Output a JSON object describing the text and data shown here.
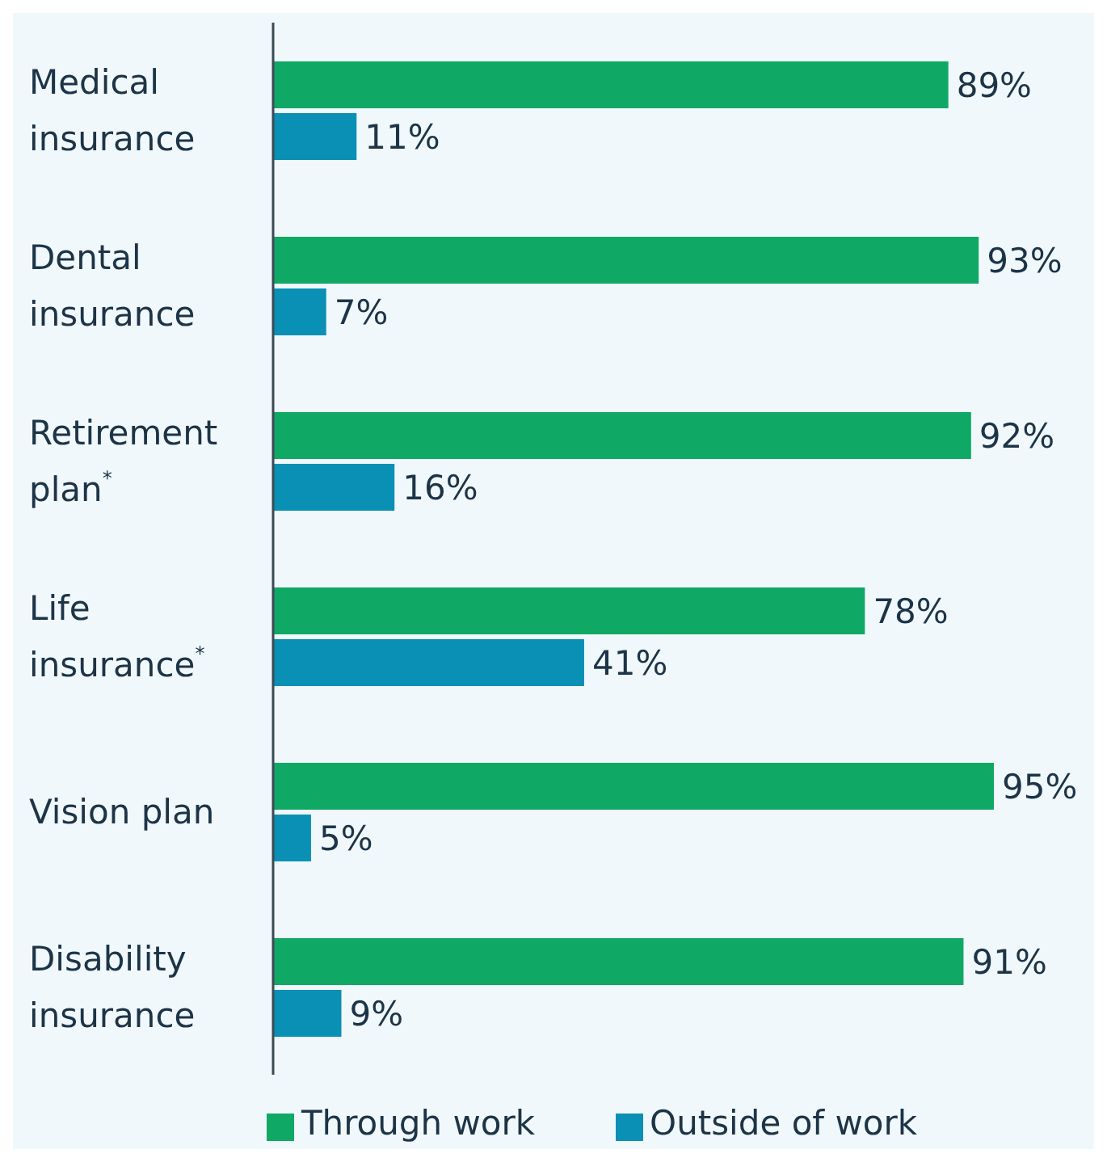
{
  "chart_data": {
    "type": "bar",
    "orientation": "horizontal",
    "categories": [
      "Medical insurance",
      "Dental insurance",
      "Retirement plan$^{*}$",
      "Life insurance$^{*}$",
      "Vision plan",
      "Disability insurance"
    ],
    "series": [
      {
        "name": "Through work",
        "color": "#10a865",
        "values": [
          89,
          93,
          92,
          78,
          95,
          91
        ],
        "value_labels": [
          "89%",
          "93%",
          "92%",
          "78%",
          "95%",
          "91%"
        ]
      },
      {
        "name": "Outside of work",
        "color": "#0a90b5",
        "values": [
          11,
          7,
          16,
          41,
          5,
          9
        ],
        "value_labels": [
          "11%",
          "7%",
          "16%",
          "41%",
          "5%",
          "9%"
        ]
      }
    ],
    "legend": "bottom",
    "grid": false,
    "tick_labels": "y"
  }
}
